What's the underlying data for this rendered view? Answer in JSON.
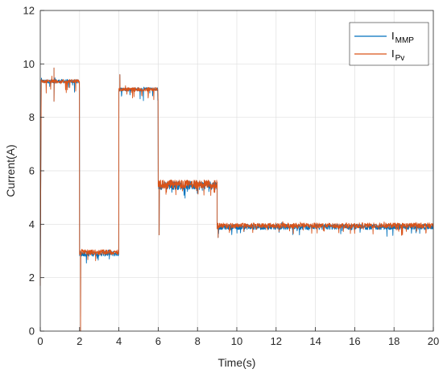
{
  "chart_data": {
    "type": "line",
    "title": "",
    "xlabel": "Time(s)",
    "ylabel": "Current(A)",
    "xlim": [
      0,
      20
    ],
    "ylim": [
      0,
      12
    ],
    "xticks": [
      0,
      2,
      4,
      6,
      8,
      10,
      12,
      14,
      16,
      18,
      20
    ],
    "yticks": [
      0,
      2,
      4,
      6,
      8,
      10,
      12
    ],
    "grid": true,
    "legend_position": "top-right",
    "series": [
      {
        "name": "I",
        "subscript": "MMP",
        "color": "#0072BD",
        "segments": [
          {
            "x": [
              0,
              0.05
            ],
            "y": [
              1.8,
              9.3
            ]
          },
          {
            "x": [
              0.05,
              2.0
            ],
            "level": 9.35
          },
          {
            "x": [
              2.0,
              4.0
            ],
            "level": 2.9
          },
          {
            "x": [
              4.0,
              6.0
            ],
            "level": 9.05
          },
          {
            "x": [
              6.0,
              9.0
            ],
            "level": 5.45
          },
          {
            "x": [
              9.0,
              20.0
            ],
            "level": 3.9
          }
        ]
      },
      {
        "name": "I",
        "subscript": "Pv",
        "color": "#D95319",
        "segments": [
          {
            "x": [
              0,
              0.05
            ],
            "y": [
              1.7,
              9.4
            ]
          },
          {
            "x": [
              0.05,
              2.0
            ],
            "level": 9.35
          },
          {
            "x": [
              2.0,
              4.0
            ],
            "level": 2.95
          },
          {
            "x": [
              4.0,
              6.0
            ],
            "level": 9.05
          },
          {
            "x": [
              6.0,
              9.0
            ],
            "level": 5.5
          },
          {
            "x": [
              9.0,
              20.0
            ],
            "level": 3.95
          }
        ]
      }
    ],
    "notable_points": [
      {
        "x": 0.7,
        "y": 9.85
      },
      {
        "x": 0.7,
        "y": 8.6
      },
      {
        "x": 2.05,
        "y": 0.0
      },
      {
        "x": 4.05,
        "y": 9.6
      },
      {
        "x": 6.05,
        "y": 3.6
      },
      {
        "x": 9.05,
        "y": 3.5
      }
    ]
  }
}
